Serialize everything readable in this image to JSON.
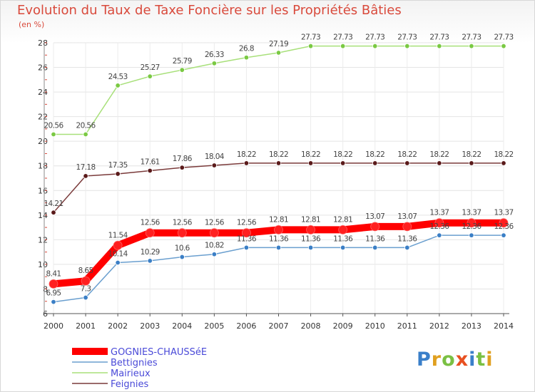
{
  "title": "Evolution du Taux de Taxe Foncière sur les Propriétés Bâties",
  "unit": "(en %)",
  "logo": {
    "p": "P",
    "r": "r",
    "o": "o",
    "x": "x",
    "i1": "i",
    "t": "t",
    "i2": "i"
  },
  "chart_data": {
    "type": "line",
    "title": "Evolution du Taux de Taxe Foncière sur les Propriétés Bâties",
    "ylabel": "(en %)",
    "xlabel": "",
    "ylim": [
      6,
      28
    ],
    "yticks": [
      6,
      8,
      10,
      12,
      14,
      16,
      18,
      20,
      22,
      24,
      26,
      28
    ],
    "grid": true,
    "legend": "bottom-left",
    "categories": [
      "2000",
      "2001",
      "2002",
      "2003",
      "2004",
      "2005",
      "2006",
      "2007",
      "2008",
      "2009",
      "2010",
      "2011",
      "2012",
      "2013",
      "2014"
    ],
    "series": [
      {
        "name": "GOGNIES-CHAUSSéE",
        "color": "#ff0000",
        "marker": "#ff2020",
        "width": 10,
        "values": [
          8.41,
          8.65,
          11.54,
          12.56,
          12.56,
          12.56,
          12.56,
          12.81,
          12.81,
          12.81,
          13.07,
          13.07,
          13.37,
          13.37,
          13.37
        ],
        "labels": [
          "8.41",
          "8.65",
          "11.54",
          "12.56",
          "12.56",
          "12.56",
          "12.56",
          "12.81",
          "12.81",
          "12.81",
          "13.07",
          "13.07",
          "13.37",
          "13.37",
          "13.37"
        ]
      },
      {
        "name": "Bettignies",
        "color": "#6a9fcf",
        "marker": "#3b7fc6",
        "width": 1.5,
        "values": [
          6.95,
          7.3,
          10.14,
          10.29,
          10.6,
          10.82,
          11.36,
          11.36,
          11.36,
          11.36,
          11.36,
          11.36,
          12.36,
          12.36,
          12.36
        ],
        "labels": [
          "6.95",
          "7.3",
          "10.14",
          "10.29",
          "10.6",
          "10.82",
          "11.36",
          "11.36",
          "11.36",
          "11.36",
          "11.36",
          "11.36",
          "12.36",
          "12.36",
          "12.36"
        ]
      },
      {
        "name": "Mairieux",
        "color": "#a8e07a",
        "marker": "#7ac943",
        "width": 1.5,
        "values": [
          20.56,
          20.56,
          24.53,
          25.27,
          25.79,
          26.33,
          26.8,
          27.19,
          27.73,
          27.73,
          27.73,
          27.73,
          27.73,
          27.73,
          27.73
        ],
        "labels": [
          "20.56",
          "20.56",
          "24.53",
          "25.27",
          "25.79",
          "26.33",
          "26.8",
          "27.19",
          "27.73",
          "27.73",
          "27.73",
          "27.73",
          "27.73",
          "27.73",
          "27.73"
        ]
      },
      {
        "name": "Feignies",
        "color": "#7a3a3a",
        "marker": "#5a1a1a",
        "width": 1.5,
        "values": [
          14.21,
          17.18,
          17.35,
          17.61,
          17.86,
          18.04,
          18.22,
          18.22,
          18.22,
          18.22,
          18.22,
          18.22,
          18.22,
          18.22,
          18.22
        ],
        "labels": [
          "14.21",
          "17.18",
          "17.35",
          "17.61",
          "17.86",
          "18.04",
          "18.22",
          "18.22",
          "18.22",
          "18.22",
          "18.22",
          "18.22",
          "18.22",
          "18.22",
          "18.22"
        ]
      }
    ]
  }
}
